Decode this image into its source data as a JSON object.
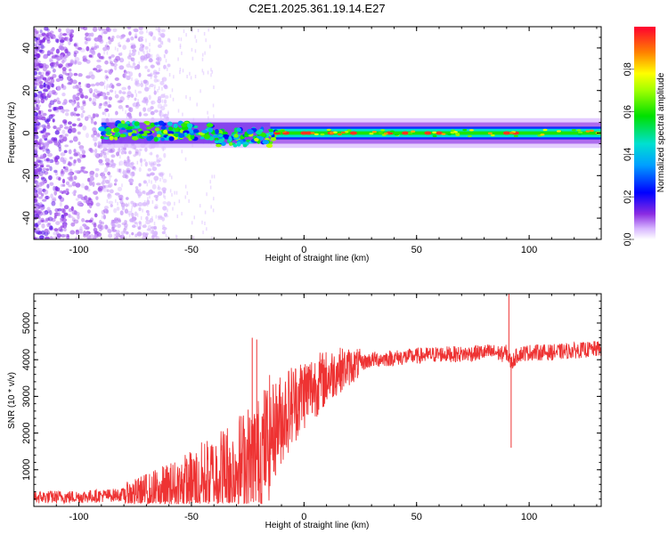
{
  "title": "C2E1.2025.361.19.14.E27",
  "chart_data": [
    {
      "type": "heatmap",
      "xlabel": "Height of straight line (km)",
      "ylabel": "Frequency (Hz)",
      "xlim": [
        -120,
        132
      ],
      "ylim": [
        -50,
        50
      ],
      "xticks": [
        -100,
        -50,
        0,
        50,
        100
      ],
      "yticks": [
        -40,
        -20,
        0,
        20,
        40
      ],
      "colorbar": {
        "label": "Normalized spectral amplitude",
        "range": [
          0,
          1
        ],
        "ticks": [
          0.0,
          0.2,
          0.4,
          0.6,
          0.8
        ]
      },
      "colors": {
        "low": "#7b00e0",
        "mid": "#00c8ff",
        "high": "#ff0033"
      }
    },
    {
      "type": "line",
      "xlabel": "Height of straight line (km)",
      "ylabel": "SNR (10 * v/v)",
      "xlim": [
        -120,
        132
      ],
      "ylim": [
        0,
        5800
      ],
      "xticks": [
        -100,
        -50,
        0,
        50,
        100
      ],
      "yticks": [
        1000,
        2000,
        3000,
        4000,
        5000
      ],
      "series": [
        {
          "name": "SNR",
          "color": "#ee3333",
          "x": [
            -120,
            -100,
            -80,
            -60,
            -50,
            -40,
            -30,
            -20,
            -15,
            -10,
            -5,
            0,
            5,
            10,
            15,
            20,
            25,
            30,
            40,
            50,
            60,
            70,
            80,
            85,
            88,
            90,
            92,
            95,
            100,
            110,
            120,
            132
          ],
          "y": [
            250,
            260,
            320,
            450,
            600,
            850,
            1100,
            1400,
            1900,
            2400,
            2800,
            3100,
            3300,
            3500,
            3700,
            3800,
            3900,
            4000,
            4050,
            4100,
            4150,
            4150,
            4200,
            4200,
            4150,
            4200,
            3900,
            4150,
            4200,
            4200,
            4250,
            4300
          ]
        }
      ],
      "spikes": [
        {
          "x": -23,
          "y": 4600
        },
        {
          "x": -21,
          "y": 4550
        },
        {
          "x": 91,
          "y": 5800
        },
        {
          "x": 92,
          "y": 1600
        }
      ]
    }
  ]
}
